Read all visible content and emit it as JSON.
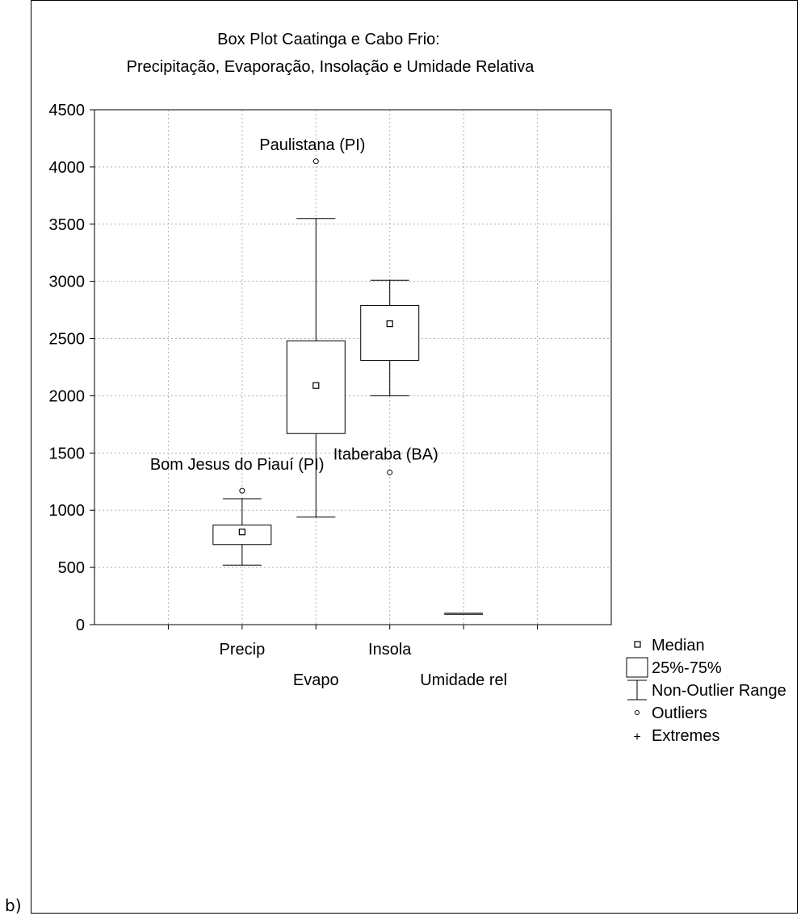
{
  "panel_label": "b)",
  "chart_data": {
    "type": "boxplot",
    "title": "Box Plot Caatinga e Cabo Frio:",
    "subtitle": "Precipitação, Evaporação, Insolação e Umidade Relativa",
    "xlabel": "",
    "ylabel": "",
    "ylim": [
      0,
      4500
    ],
    "yticks": [
      0,
      500,
      1000,
      1500,
      2000,
      2500,
      3000,
      3500,
      4000,
      4500
    ],
    "grid": true,
    "categories": [
      "Precip",
      "Evapo",
      "Insola",
      "Umidade rel"
    ],
    "boxes": [
      {
        "category": "Precip",
        "median": 810,
        "q1": 700,
        "q3": 870,
        "whisker_low": 520,
        "whisker_high": 1100,
        "outliers": [
          {
            "value": 1170,
            "label": "Bom Jesus do Piauí (PI)"
          }
        ]
      },
      {
        "category": "Evapo",
        "median": 2090,
        "q1": 1670,
        "q3": 2480,
        "whisker_low": 940,
        "whisker_high": 3550,
        "outliers": [
          {
            "value": 4050,
            "label": "Paulistana (PI)"
          }
        ]
      },
      {
        "category": "Insola",
        "median": 2630,
        "q1": 2310,
        "q3": 2790,
        "whisker_low": 2000,
        "whisker_high": 3010,
        "outliers": [
          {
            "value": 1330,
            "label": "Itaberaba (BA)"
          }
        ]
      },
      {
        "category": "Umidade rel",
        "median": 95,
        "q1": 92,
        "q3": 98,
        "whisker_low": 90,
        "whisker_high": 100,
        "outliers": []
      }
    ],
    "legend": {
      "placement": "right",
      "entries": [
        "Median",
        "25%-75%",
        "Non-Outlier Range",
        "Outliers",
        "Extremes"
      ]
    }
  }
}
